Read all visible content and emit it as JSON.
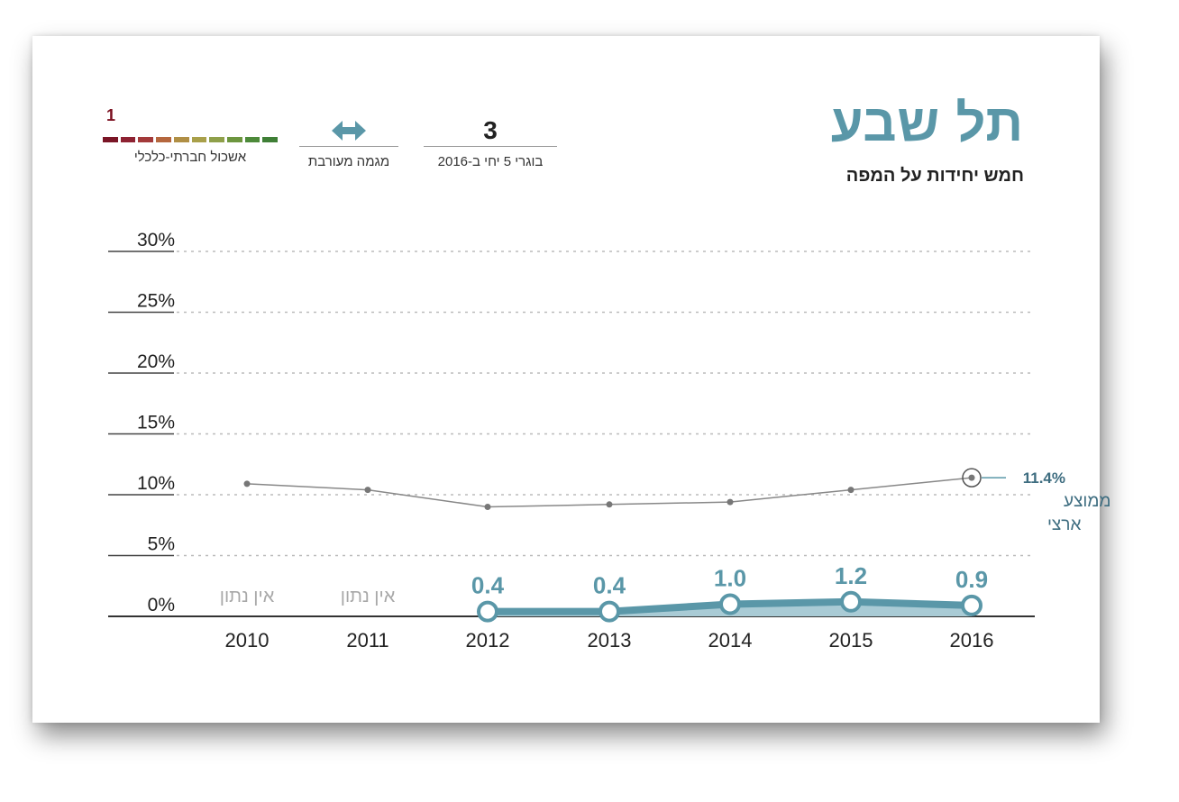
{
  "header": {
    "title": "תל שבע",
    "subtitle": "חמש יחידות על המפה"
  },
  "stats": {
    "graduates": {
      "value": "3",
      "caption": "בוגרי 5 יחי ב-2016"
    },
    "trend": {
      "icon": "double-arrow-icon",
      "caption": "מגמה מעורבת"
    },
    "socio_economic": {
      "value": "1",
      "caption": "אשכול חברתי-כלכלי",
      "scale_colors": [
        "#7a1526",
        "#8e2232",
        "#a33a3a",
        "#b5673e",
        "#b08f45",
        "#a9a04a",
        "#8fa04a",
        "#6d963f",
        "#4d8a3a",
        "#3f7f36"
      ]
    }
  },
  "chart_data": {
    "type": "line",
    "x": [
      "2010",
      "2011",
      "2012",
      "2013",
      "2014",
      "2015",
      "2016"
    ],
    "y_ticks": [
      "30%",
      "25%",
      "20%",
      "15%",
      "10%",
      "5%",
      "0%"
    ],
    "ylim": [
      0,
      30
    ],
    "series": [
      {
        "values": [
          10.9,
          10.4,
          9.0,
          9.2,
          9.4,
          10.4,
          11.4
        ],
        "color": "#888888"
      },
      {
        "values": [
          null,
          null,
          0.4,
          0.4,
          1.0,
          1.2,
          0.9
        ],
        "labels": [
          "",
          "",
          "0.4",
          "0.4",
          "1.0",
          "1.2",
          "0.9"
        ],
        "color": "#5a97a8"
      }
    ],
    "no_data_label": "אין נתון",
    "national_avg": {
      "value_label": "11.4%",
      "line1": "ממוצע",
      "line2": "ארצי"
    }
  }
}
